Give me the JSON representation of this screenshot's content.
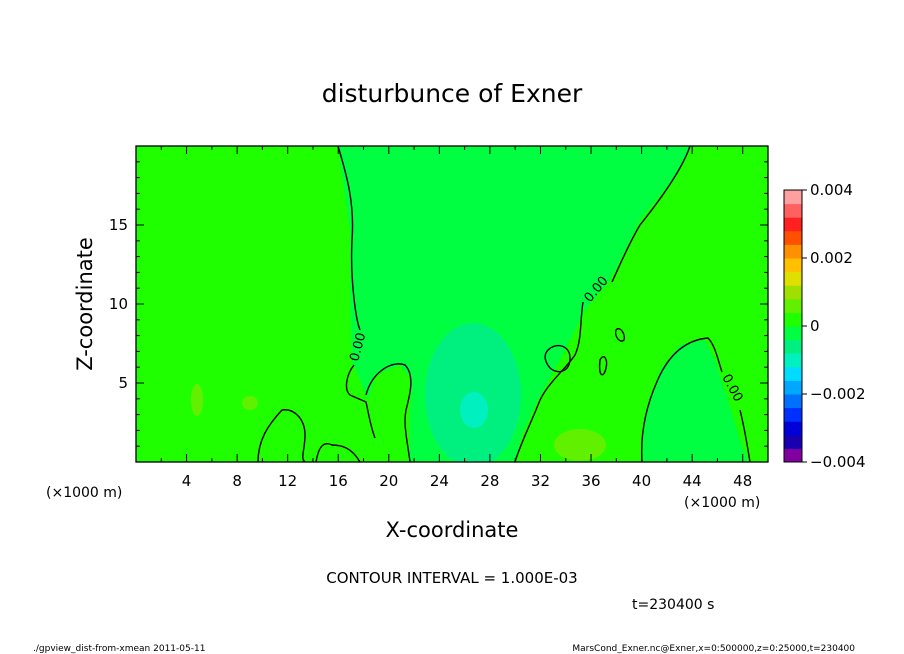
{
  "chart_data": {
    "type": "heatmap",
    "title": "disturbunce of Exner",
    "xlabel": "X-coordinate",
    "ylabel": "Z-coordinate",
    "x_unit_label": "(×1000 m)",
    "xlim": [
      0,
      50
    ],
    "ylim": [
      0,
      20
    ],
    "x_ticks": [
      "4",
      "8",
      "12",
      "16",
      "20",
      "24",
      "28",
      "32",
      "36",
      "40",
      "44",
      "48"
    ],
    "y_ticks": [
      "5",
      "10",
      "15"
    ],
    "contour_label": "0.00",
    "contour_interval_text": "CONTOUR INTERVAL = 1.000E-03",
    "time_text": "t=230400 s",
    "colorbar": {
      "ticks": [
        "0.004",
        "0.002",
        "0",
        "−0.002",
        "−0.004"
      ],
      "range": [
        -0.004,
        0.004
      ],
      "colors": [
        "#8000a0",
        "#1800b0",
        "#0000d8",
        "#0030ff",
        "#0070ff",
        "#00a8ff",
        "#00dcff",
        "#00f0c0",
        "#00f080",
        "#00ff40",
        "#20ff00",
        "#60f000",
        "#a0e000",
        "#e0e000",
        "#ffc000",
        "#ff9000",
        "#ff5000",
        "#ff2020",
        "#ff6060",
        "#ffa0a0"
      ]
    },
    "field_levels": {
      "background": "~0 (green, #20ff00 / #00ff40)",
      "center_min_near_x26_z3": "≈ -0.0008",
      "bottom_right_bump_x34_z1": "≈ +0.0002"
    }
  },
  "footer": {
    "left": "./gpview_dist-from-xmean  2011-05-11",
    "right": "MarsCond_Exner.nc@Exner,x=0:500000,z=0:25000,t=230400"
  }
}
